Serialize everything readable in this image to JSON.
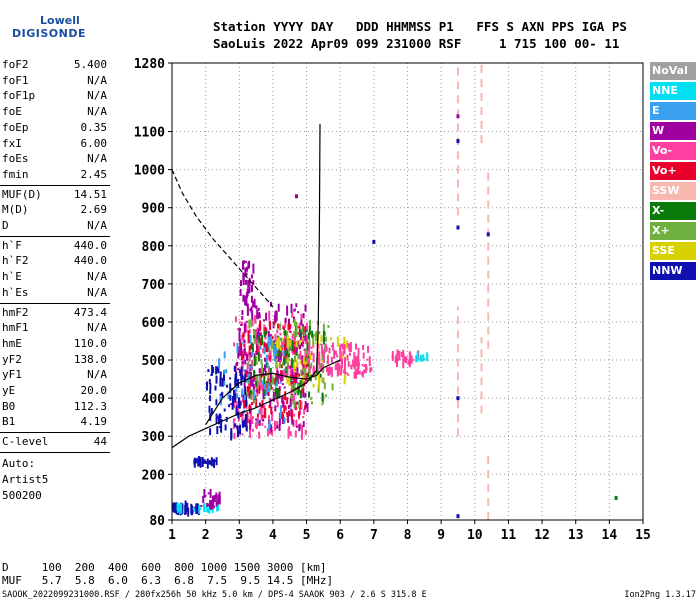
{
  "logo": {
    "top": "Lowell",
    "bottom": "DIGISONDE"
  },
  "header": {
    "line1": "Station YYYY DAY   DDD HHMMSS P1   FFS S AXN PPS IGA PS",
    "line2": "SaoLuis 2022 Apr09 099 231000 RSF     1 715 100 00- 11"
  },
  "params_a": [
    {
      "name": "foF2",
      "value": "5.400"
    },
    {
      "name": "foF1",
      "value": "N/A"
    },
    {
      "name": "foF1p",
      "value": "N/A"
    },
    {
      "name": "foE",
      "value": "N/A"
    },
    {
      "name": "foEp",
      "value": "0.35"
    },
    {
      "name": "fxI",
      "value": "6.00"
    },
    {
      "name": "foEs",
      "value": "N/A"
    },
    {
      "name": "fmin",
      "value": "2.45"
    }
  ],
  "params_b": [
    {
      "name": "MUF(D)",
      "value": "14.51"
    },
    {
      "name": "M(D)",
      "value": "2.69"
    },
    {
      "name": "D",
      "value": "N/A"
    }
  ],
  "params_c": [
    {
      "name": "h`F",
      "value": "440.0"
    },
    {
      "name": "h`F2",
      "value": "440.0"
    },
    {
      "name": "h`E",
      "value": "N/A"
    },
    {
      "name": "h`Es",
      "value": "N/A"
    }
  ],
  "params_d": [
    {
      "name": "hmF2",
      "value": "473.4"
    },
    {
      "name": "hmF1",
      "value": "N/A"
    },
    {
      "name": "hmE",
      "value": "110.0"
    },
    {
      "name": "yF2",
      "value": "138.0"
    },
    {
      "name": "yF1",
      "value": "N/A"
    },
    {
      "name": "yE",
      "value": "20.0"
    },
    {
      "name": "B0",
      "value": "112.3"
    },
    {
      "name": "B1",
      "value": "4.19"
    }
  ],
  "clevel": {
    "name": "C-level",
    "value": "44"
  },
  "auto": [
    "Auto:",
    "Artist5",
    "500200"
  ],
  "legend": [
    {
      "label": "NoVal",
      "color": "#a0a0a0"
    },
    {
      "label": "NNE",
      "color": "#00e0f0"
    },
    {
      "label": "E",
      "color": "#3aa0f0"
    },
    {
      "label": "W",
      "color": "#a000a0"
    },
    {
      "label": "Vo-",
      "color": "#ff40a0"
    },
    {
      "label": "Vo+",
      "color": "#e8002a"
    },
    {
      "label": "SSW",
      "color": "#f8b8b0"
    },
    {
      "label": "X-",
      "color": "#0a7a0a"
    },
    {
      "label": "X+",
      "color": "#70b040"
    },
    {
      "label": "SSE",
      "color": "#d8d000"
    },
    {
      "label": "NNW",
      "color": "#1010b0"
    }
  ],
  "bottom": {
    "d_line": "D     100  200  400  600  800 1000 1500 3000 [km]",
    "muf_line": "MUF   5.7  5.8  6.0  6.3  6.8  7.5  9.5 14.5 [MHz]"
  },
  "footer": {
    "left": "SAOOK_2022099231000.RSF / 280fx256h 50 kHz 5.0 km / DPS-4 SAAOK 903 / 2.6 S 315.8 E",
    "right": "Ion2Png 1.3.17"
  },
  "chart_data": {
    "type": "scatter",
    "xlim": [
      1,
      15
    ],
    "ylim": [
      80,
      1280
    ],
    "x_ticks": [
      1,
      2,
      3,
      4,
      5,
      6,
      7,
      8,
      9,
      10,
      11,
      12,
      13,
      14,
      15
    ],
    "y_ticks": [
      80,
      200,
      300,
      400,
      500,
      600,
      700,
      800,
      900,
      1000,
      1100,
      1280
    ],
    "grid": true,
    "profile_curve": [
      [
        1.0,
        270
      ],
      [
        1.5,
        300
      ],
      [
        2.0,
        320
      ],
      [
        2.5,
        340
      ],
      [
        3.0,
        360
      ],
      [
        3.5,
        375
      ],
      [
        4.0,
        395
      ],
      [
        4.5,
        415
      ],
      [
        5.0,
        440
      ],
      [
        5.3,
        473
      ],
      [
        5.35,
        600
      ],
      [
        5.38,
        850
      ],
      [
        5.4,
        1120
      ]
    ],
    "trace_curve": [
      [
        2.0,
        330
      ],
      [
        2.5,
        400
      ],
      [
        3.0,
        440
      ],
      [
        3.5,
        460
      ],
      [
        4.0,
        465
      ],
      [
        4.5,
        455
      ],
      [
        5.0,
        450
      ],
      [
        5.3,
        460
      ],
      [
        5.5,
        480
      ],
      [
        6.0,
        500
      ]
    ],
    "muf_curve": [
      [
        1.0,
        1000
      ],
      [
        1.3,
        940
      ],
      [
        1.7,
        880
      ],
      [
        2.2,
        820
      ],
      [
        2.7,
        770
      ],
      [
        3.2,
        720
      ],
      [
        3.6,
        680
      ],
      [
        4.0,
        640
      ]
    ],
    "echo_regions": [
      {
        "series": "Vo-",
        "x": [
          2.8,
          5.0
        ],
        "y": [
          300,
          620
        ],
        "n": 260
      },
      {
        "series": "W",
        "x": [
          2.9,
          5.0
        ],
        "y": [
          320,
          650
        ],
        "n": 200
      },
      {
        "series": "Vo+",
        "x": [
          3.0,
          5.0
        ],
        "y": [
          350,
          600
        ],
        "n": 120
      },
      {
        "series": "X+",
        "x": [
          3.2,
          5.8
        ],
        "y": [
          380,
          600
        ],
        "n": 110
      },
      {
        "series": "X-",
        "x": [
          3.3,
          5.6
        ],
        "y": [
          400,
          580
        ],
        "n": 60
      },
      {
        "series": "NNW",
        "x": [
          2.0,
          3.2
        ],
        "y": [
          300,
          480
        ],
        "n": 90
      },
      {
        "series": "E",
        "x": [
          2.3,
          4.5
        ],
        "y": [
          320,
          560
        ],
        "n": 50
      },
      {
        "series": "SSE",
        "x": [
          3.8,
          6.2
        ],
        "y": [
          430,
          560
        ],
        "n": 50
      },
      {
        "series": "Vo-",
        "x": [
          5.0,
          6.9
        ],
        "y": [
          460,
          540
        ],
        "n": 110
      },
      {
        "series": "Vo-",
        "x": [
          7.5,
          8.4
        ],
        "y": [
          490,
          520
        ],
        "n": 30
      },
      {
        "series": "NNE",
        "x": [
          8.2,
          8.6
        ],
        "y": [
          500,
          510
        ],
        "n": 8
      },
      {
        "series": "NNW",
        "x": [
          1.0,
          1.8
        ],
        "y": [
          100,
          120
        ],
        "n": 40
      },
      {
        "series": "NNE",
        "x": [
          1.0,
          2.4
        ],
        "y": [
          105,
          115
        ],
        "n": 20
      },
      {
        "series": "W",
        "x": [
          1.8,
          2.4
        ],
        "y": [
          110,
          150
        ],
        "n": 25
      },
      {
        "series": "NNW",
        "x": [
          1.6,
          2.3
        ],
        "y": [
          228,
          236
        ],
        "n": 25
      },
      {
        "series": "W",
        "x": [
          3.0,
          3.4
        ],
        "y": [
          640,
          760
        ],
        "n": 30
      }
    ],
    "ssw_lines": [
      {
        "x": 9.5,
        "y": [
          880,
          1280
        ],
        "dashed": true
      },
      {
        "x": 9.5,
        "y": [
          300,
          640
        ],
        "dashed": true
      },
      {
        "x": 10.2,
        "y": [
          1070,
          1280
        ],
        "dashed": true
      },
      {
        "x": 10.4,
        "y": [
          530,
          1000
        ],
        "dashed": true
      },
      {
        "x": 10.4,
        "y": [
          80,
          260
        ],
        "dashed": true
      },
      {
        "x": 10.2,
        "y": [
          360,
          560
        ],
        "dashed": true
      }
    ],
    "isolated_points": [
      {
        "series": "X-",
        "x": 14.2,
        "y": 138
      },
      {
        "series": "NNW",
        "x": 9.5,
        "y": 848
      },
      {
        "series": "NNW",
        "x": 7.0,
        "y": 810
      },
      {
        "series": "NNW",
        "x": 9.5,
        "y": 1075
      },
      {
        "series": "W",
        "x": 4.7,
        "y": 930
      },
      {
        "series": "W",
        "x": 9.5,
        "y": 1140
      },
      {
        "series": "NNW",
        "x": 10.4,
        "y": 830
      },
      {
        "series": "NNW",
        "x": 9.5,
        "y": 400
      },
      {
        "series": "NNW",
        "x": 9.5,
        "y": 90
      }
    ]
  }
}
